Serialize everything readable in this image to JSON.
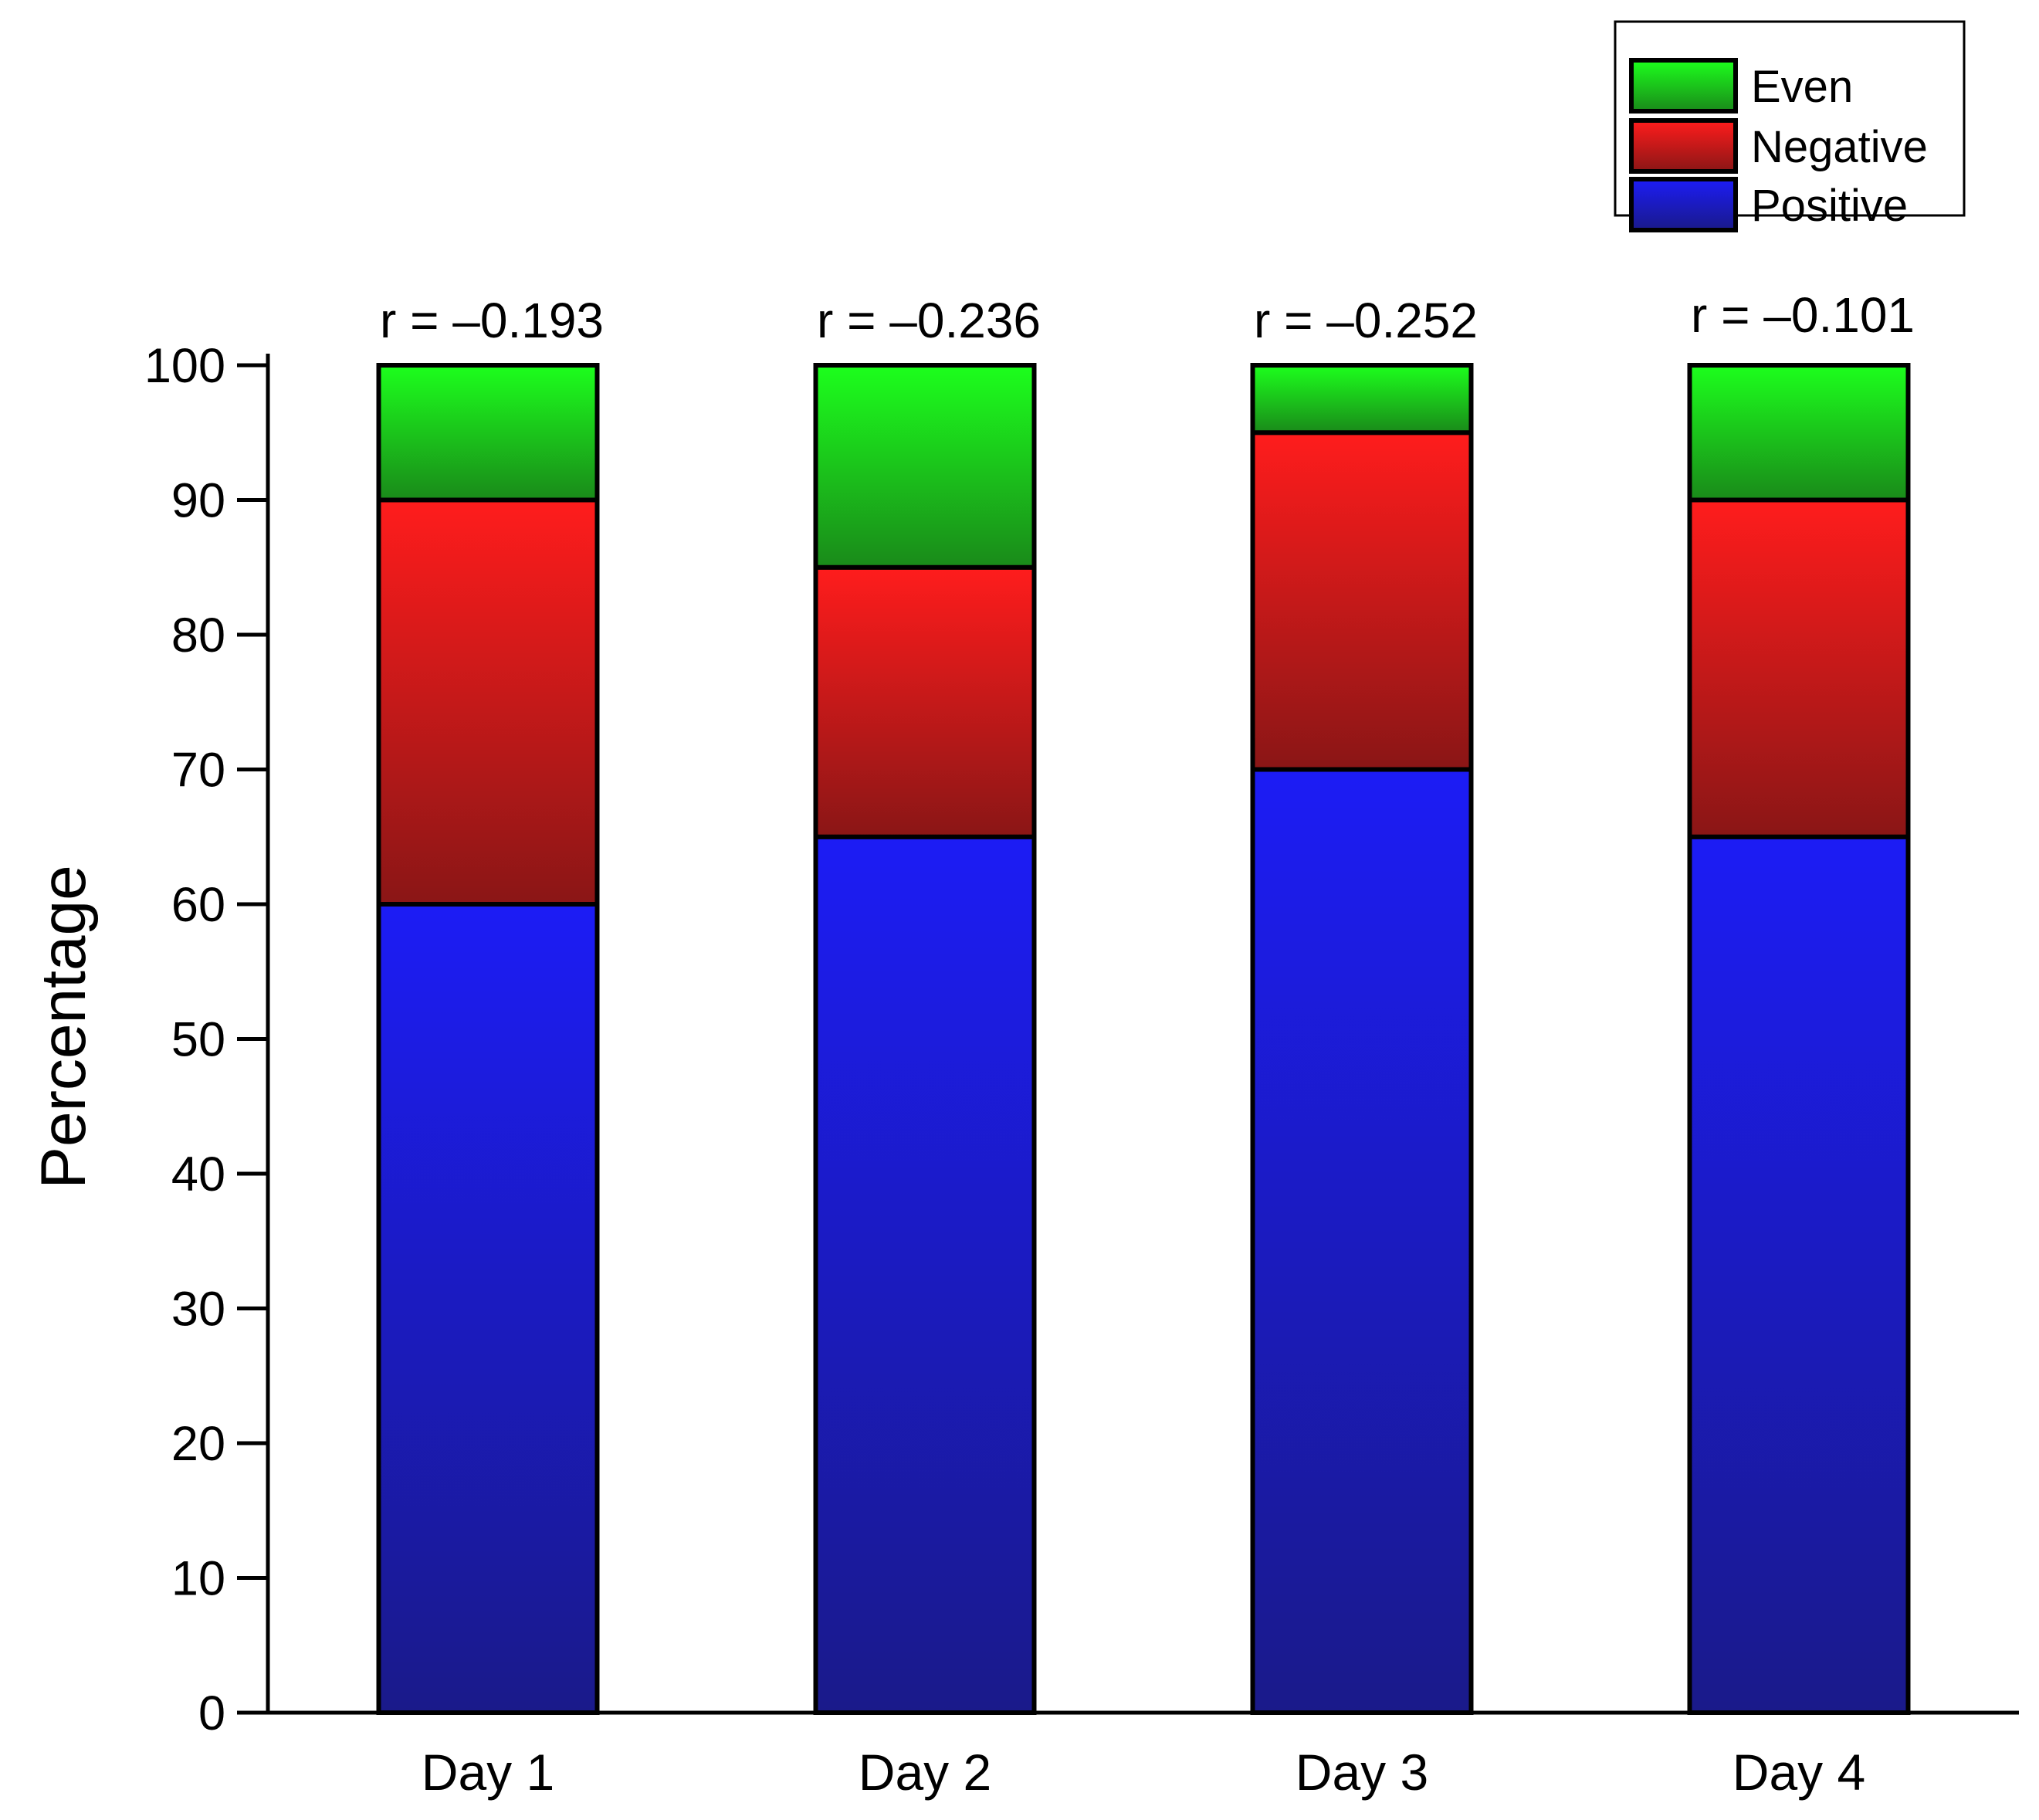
{
  "chart_data": {
    "type": "bar",
    "stacked": true,
    "title": "",
    "xlabel": "",
    "ylabel": "Percentage",
    "ylim": [
      0,
      100
    ],
    "yticks": [
      0,
      10,
      20,
      30,
      40,
      50,
      60,
      70,
      80,
      90,
      100
    ],
    "categories": [
      "Day 1",
      "Day 2",
      "Day 3",
      "Day 4"
    ],
    "series": [
      {
        "name": "Positive",
        "values": [
          60,
          65,
          70,
          65
        ],
        "color_top": "#1c1cf5",
        "color_bottom": "#1a1a8a"
      },
      {
        "name": "Negative",
        "values": [
          30,
          20,
          25,
          25
        ],
        "color_top": "#ff1c1c",
        "color_bottom": "#8a1616"
      },
      {
        "name": "Even",
        "values": [
          10,
          15,
          5,
          10
        ],
        "color_top": "#1cff1c",
        "color_bottom": "#1a8a1a"
      }
    ],
    "annotations": [
      "r = –0.193",
      "r = –0.236",
      "r = –0.252",
      "r = –0.101"
    ],
    "legend": {
      "placement": "top-right",
      "entries": [
        "Even",
        "Negative",
        "Positive"
      ]
    }
  }
}
